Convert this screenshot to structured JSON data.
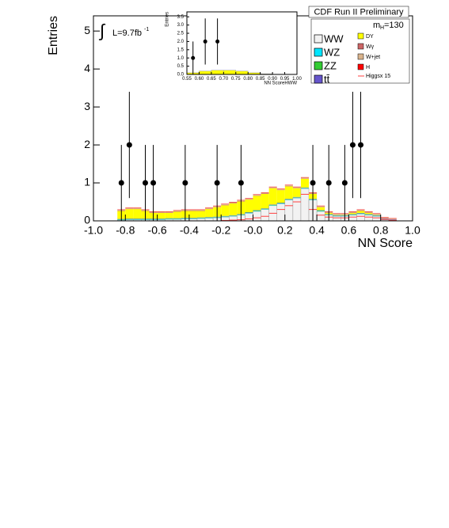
{
  "chart_data": [
    {
      "type": "histogram",
      "title": "CDF Run II Preliminary",
      "xlabel": "NN Score",
      "ylabel": "Entries",
      "mass": {
        "symbol": "m",
        "sub": "H",
        "text": "=130"
      },
      "lumi": {
        "integral": "∫",
        "text": "L=9.7fb",
        "sup": "-1"
      },
      "legend": "upper right",
      "xlim": [
        -1,
        1
      ],
      "ylim": [
        0,
        5.4
      ],
      "xticks": [
        {
          "value": -1,
          "label": "-1.0"
        },
        -0.8,
        -0.6,
        -0.4,
        -0.2,
        {
          "value": 0,
          "label": "-0.0"
        },
        0.2,
        0.4,
        0.6,
        0.8,
        {
          "value": 1,
          "label": "1.0"
        }
      ],
      "yticks": [
        0,
        1,
        2,
        3,
        4,
        5
      ],
      "bins": [
        -0.85,
        -0.8,
        -0.75,
        -0.7,
        -0.65,
        -0.6,
        -0.55,
        -0.5,
        -0.45,
        -0.4,
        -0.35,
        -0.3,
        -0.25,
        -0.2,
        -0.15,
        -0.1,
        -0.05,
        0,
        0.05,
        0.1,
        0.15,
        0.2,
        0.25,
        0.3,
        0.35,
        0.4,
        0.45,
        0.5,
        0.55,
        0.6,
        0.65,
        0.7,
        0.75,
        0.8,
        0.85,
        0.9
      ],
      "series": [
        {
          "name": "WW",
          "color": "#f2f2f2",
          "values": [
            0.02,
            0.03,
            0.03,
            0.03,
            0.03,
            0.03,
            0.04,
            0.04,
            0.05,
            0.05,
            0.06,
            0.07,
            0.08,
            0.1,
            0.12,
            0.15,
            0.2,
            0.25,
            0.3,
            0.4,
            0.45,
            0.55,
            0.6,
            0.85,
            0.55,
            0.25,
            0.15,
            0.12,
            0.12,
            0.15,
            0.18,
            0.15,
            0.12,
            0.03,
            0
          ]
        },
        {
          "name": "WZ",
          "color": "#00e5ff",
          "values": [
            0.01,
            0.01,
            0.01,
            0.01,
            0.01,
            0.01,
            0.01,
            0.01,
            0.01,
            0.01,
            0.01,
            0.01,
            0.01,
            0.01,
            0.01,
            0.01,
            0.01,
            0.01,
            0.01,
            0.01,
            0.01,
            0.01,
            0.01,
            0.01,
            0.01,
            0.01,
            0.01,
            0.01,
            0.01,
            0.01,
            0.01,
            0.01,
            0.01,
            0.01,
            0.01
          ]
        },
        {
          "name": "ZZ",
          "color": "#33cc33",
          "values": [
            0.01,
            0.01,
            0.01,
            0.01,
            0.01,
            0.01,
            0.01,
            0.01,
            0.01,
            0.01,
            0.01,
            0.01,
            0.01,
            0.01,
            0.01,
            0.01,
            0.01,
            0.01,
            0.01,
            0.01,
            0.01,
            0.01,
            0.01,
            0.01,
            0.01,
            0.01,
            0.01,
            0.01,
            0.01,
            0.01,
            0.01,
            0.01,
            0.01,
            0.01,
            0.01
          ]
        },
        {
          "name": "tt̄",
          "color": "#6655cc",
          "values": [
            0.01,
            0.01,
            0.01,
            0.01,
            0.01,
            0.01,
            0.01,
            0.01,
            0.01,
            0.01,
            0.01,
            0.01,
            0.01,
            0.01,
            0.01,
            0.01,
            0.01,
            0.01,
            0.01,
            0.01,
            0.01,
            0.01,
            0.01,
            0.01,
            0.01,
            0.01,
            0.01,
            0.01,
            0.01,
            0.01,
            0.01,
            0.01,
            0.01,
            0.01,
            0.01
          ]
        },
        {
          "name": "DY",
          "color": "#ffff00",
          "values": [
            0.21,
            0.25,
            0.25,
            0.2,
            0.15,
            0.15,
            0.14,
            0.17,
            0.18,
            0.18,
            0.17,
            0.21,
            0.25,
            0.28,
            0.31,
            0.33,
            0.33,
            0.38,
            0.38,
            0.43,
            0.33,
            0.33,
            0.23,
            0.23,
            0.13,
            0.08,
            0.03,
            0.01,
            0.01,
            0.03,
            0.05,
            0.03,
            0.01,
            0,
            0
          ]
        },
        {
          "name": "Wγ",
          "color": "#cc6666",
          "values": [
            0.01,
            0.01,
            0.01,
            0.01,
            0.01,
            0.01,
            0.01,
            0.01,
            0.01,
            0.01,
            0.01,
            0.01,
            0.01,
            0.01,
            0.01,
            0.01,
            0.01,
            0.01,
            0.01,
            0.01,
            0.01,
            0.01,
            0.01,
            0.01,
            0.01,
            0.01,
            0.01,
            0.01,
            0.01,
            0.01,
            0.01,
            0.01,
            0.01,
            0.01,
            0.01
          ]
        },
        {
          "name": "W+jet",
          "color": "#d9b38c",
          "values": [
            0.02,
            0.02,
            0.02,
            0.02,
            0.02,
            0.02,
            0.02,
            0.02,
            0.02,
            0.02,
            0.02,
            0.02,
            0.02,
            0.02,
            0.02,
            0.02,
            0.02,
            0.02,
            0.02,
            0.02,
            0.02,
            0.02,
            0.02,
            0.02,
            0.02,
            0.02,
            0.02,
            0.02,
            0.02,
            0.02,
            0.02,
            0.02,
            0.02,
            0.02,
            0.02
          ]
        },
        {
          "name": "H",
          "color": "#ff0000",
          "values": [
            0.01,
            0.01,
            0.01,
            0.01,
            0.01,
            0.01,
            0.01,
            0.01,
            0.01,
            0.01,
            0.01,
            0.01,
            0.01,
            0.01,
            0.01,
            0.01,
            0.01,
            0.01,
            0.01,
            0.01,
            0.01,
            0.01,
            0.01,
            0.01,
            0.01,
            0.01,
            0.01,
            0.01,
            0.01,
            0.01,
            0.01,
            0.01,
            0.01,
            0.01,
            0.01
          ]
        }
      ],
      "lines": [
        {
          "name": "Higgsx 15",
          "color": "#ff4040",
          "values": [
            0,
            0,
            0,
            0,
            0,
            0,
            0,
            0,
            0,
            0,
            0,
            0,
            0,
            0.01,
            0.02,
            0.03,
            0.05,
            0.08,
            0.12,
            0.2,
            0.3,
            0.4,
            0.5,
            0.7,
            0.3,
            0.15,
            0.1,
            0.08,
            0.08,
            0.1,
            0.12,
            0.1,
            0.08,
            0.04,
            0.01
          ]
        }
      ],
      "data": {
        "x": [
          -0.825,
          -0.775,
          -0.675,
          -0.625,
          -0.425,
          -0.225,
          -0.075,
          0.375,
          0.475,
          0.575,
          0.625,
          0.675
        ],
        "values": [
          1,
          2,
          1,
          1,
          1,
          1,
          1,
          1,
          1,
          1,
          2,
          2
        ],
        "yerr_up": [
          1,
          1.4,
          1,
          1,
          1,
          1,
          1,
          1,
          1,
          1,
          1.4,
          1.4
        ],
        "yerr_down": [
          1,
          1.4,
          1,
          1,
          1,
          1,
          1,
          1,
          1,
          1,
          1.4,
          1.4
        ]
      }
    },
    {
      "type": "histogram",
      "xlabel": "NN ScoreHWW",
      "ylabel": "Entries",
      "xlim": [
        0.55,
        1
      ],
      "ylim": [
        0,
        3.8
      ],
      "xticks": [
        0.55,
        {
          "value": 0.6,
          "label": "0.60"
        },
        0.65,
        {
          "value": 0.7,
          "label": "0.70"
        },
        0.75,
        {
          "value": 0.8,
          "label": "0.80"
        },
        0.85,
        {
          "value": 0.9,
          "label": "0.90"
        },
        0.95,
        {
          "value": 1,
          "label": "1.00"
        }
      ],
      "yticks": [
        {
          "value": 0,
          "label": "0.0"
        },
        0.5,
        {
          "value": 1,
          "label": "1.0"
        },
        1.5,
        {
          "value": 2,
          "label": "2.0"
        },
        2.5,
        {
          "value": 3,
          "label": "3.0"
        },
        3.5
      ],
      "bins": [
        0.55,
        0.6,
        0.65,
        0.7,
        0.75,
        0.8,
        0.85,
        0.9,
        0.95,
        1
      ],
      "series": [
        {
          "color": "#ffff00",
          "values": [
            0.1,
            0.2,
            0.25,
            0.25,
            0.2,
            0.1,
            0.03,
            0.01,
            0
          ]
        }
      ],
      "data": {
        "x": [
          0.575,
          0.625,
          0.675
        ],
        "values": [
          1,
          2,
          2
        ],
        "yerr_up": [
          1,
          1.4,
          1.4
        ],
        "yerr_down": [
          1,
          1.4,
          1.4
        ]
      }
    }
  ]
}
